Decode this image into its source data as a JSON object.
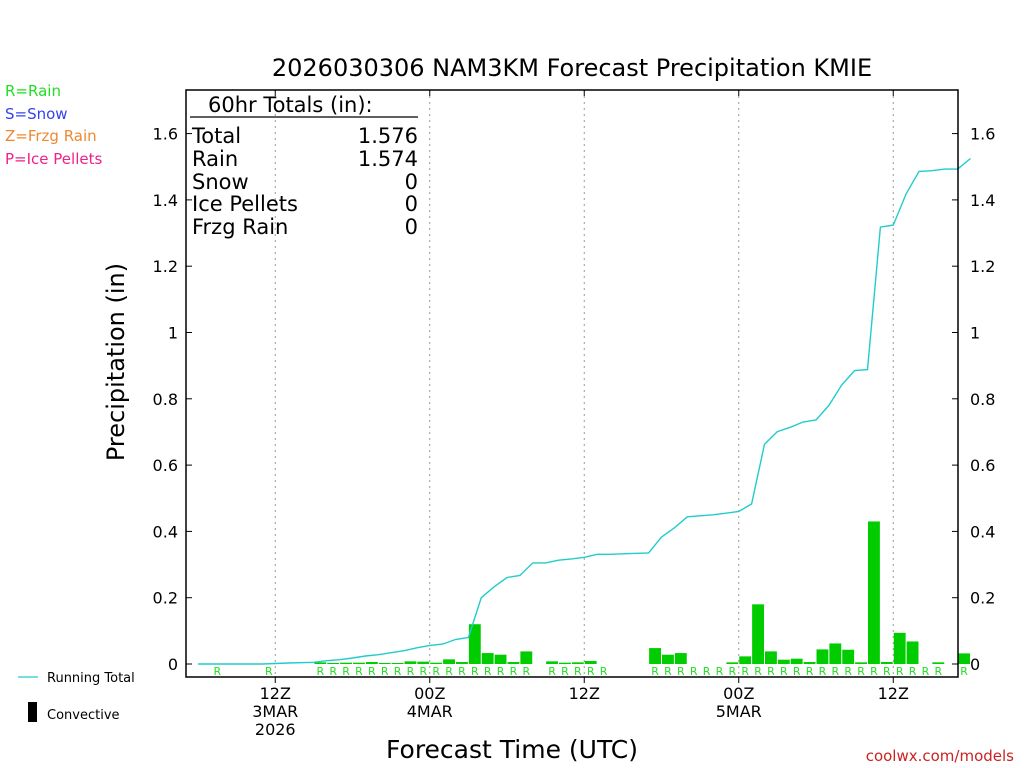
{
  "chart_data": {
    "type": "bar",
    "title": "2026030306 NAM3KM Forecast Precipitation KMIE",
    "xlabel": "Forecast Time (UTC)",
    "ylabel": "Precipitation (in)",
    "ylim": [
      0,
      1.75
    ],
    "x_range_hours": [
      0,
      60
    ],
    "y_ticks": [
      "0",
      "0.2",
      "0.4",
      "0.6",
      "0.8",
      "1",
      "1.2",
      "1.4",
      "1.6"
    ],
    "y_tick_values": [
      0,
      0.2,
      0.4,
      0.6,
      0.8,
      1.0,
      1.2,
      1.4,
      1.6
    ],
    "x_ticks": [
      {
        "hour": 6,
        "lines": [
          "12Z",
          "3MAR",
          "2026"
        ]
      },
      {
        "hour": 18,
        "lines": [
          "00Z",
          "4MAR"
        ]
      },
      {
        "hour": 30,
        "lines": [
          "12Z"
        ]
      },
      {
        "hour": 42,
        "lines": [
          "00Z",
          "5MAR"
        ]
      },
      {
        "hour": 54,
        "lines": [
          "12Z"
        ]
      }
    ],
    "legend_types": [
      {
        "label": "R=Rain",
        "color": "#22dd22"
      },
      {
        "label": "S=Snow",
        "color": "#3344ee"
      },
      {
        "label": "Z=Frzg Rain",
        "color": "#ee8833"
      },
      {
        "label": "P=Ice Pellets",
        "color": "#ee2288"
      }
    ],
    "legend_lines": {
      "running_total": "Running Total",
      "running_total_color": "#22cccc",
      "convective": "Convective",
      "convective_color": "#000000"
    },
    "totals": {
      "header": "60hr Totals (in):",
      "rows": [
        {
          "label": "Total",
          "value": "1.576"
        },
        {
          "label": "Rain",
          "value": "1.574"
        },
        {
          "label": "Snow",
          "value": "0"
        },
        {
          "label": "Ice Pellets",
          "value": "0"
        },
        {
          "label": "Frzg Rain",
          "value": "0"
        }
      ]
    },
    "bar_color": "#00cc00",
    "series": [
      {
        "name": "Hourly Precipitation",
        "hours": [
          1,
          2,
          3,
          4,
          5,
          6,
          7,
          8,
          9,
          10,
          11,
          12,
          13,
          14,
          15,
          16,
          17,
          18,
          19,
          20,
          21,
          22,
          23,
          24,
          25,
          26,
          27,
          28,
          29,
          30,
          31,
          32,
          33,
          34,
          35,
          36,
          37,
          38,
          39,
          40,
          41,
          42,
          43,
          44,
          45,
          46,
          47,
          48,
          49,
          50,
          51,
          52,
          53,
          54,
          55,
          56,
          57,
          58,
          59,
          60
        ],
        "values": [
          0,
          0,
          0,
          0,
          0,
          0,
          0,
          0,
          0,
          0.005,
          0.003,
          0.004,
          0.004,
          0.006,
          0.003,
          0.003,
          0.008,
          0.007,
          0.004,
          0.014,
          0.006,
          0.12,
          0.033,
          0.028,
          0.006,
          0.038,
          0,
          0.008,
          0.004,
          0.005,
          0.009,
          0,
          0,
          0,
          0,
          0.048,
          0.028,
          0.033,
          0,
          0,
          0,
          0.005,
          0.023,
          0.18,
          0.038,
          0.013,
          0.016,
          0.006,
          0.044,
          0.062,
          0.043,
          0.005,
          0.43,
          0.006,
          0.094,
          0.068,
          0,
          0.005,
          0,
          0.032
        ]
      },
      {
        "name": "Running Total",
        "hours": [
          0,
          5,
          7,
          9,
          10,
          11,
          12,
          13,
          14,
          15,
          16,
          17,
          18,
          19,
          20,
          21,
          22,
          23,
          24,
          25,
          26,
          27,
          28,
          29,
          30,
          31,
          32,
          35,
          36,
          37,
          38,
          39,
          40,
          41,
          42,
          43,
          44,
          45,
          46,
          47,
          48,
          49,
          50,
          51,
          52,
          53,
          54,
          55,
          56,
          57,
          58,
          59,
          60
        ],
        "values": [
          0,
          0,
          0.003,
          0.005,
          0.01,
          0.013,
          0.018,
          0.024,
          0.028,
          0.034,
          0.04,
          0.049,
          0.056,
          0.06,
          0.074,
          0.08,
          0.2,
          0.233,
          0.261,
          0.267,
          0.305,
          0.305,
          0.313,
          0.317,
          0.322,
          0.331,
          0.331,
          0.335,
          0.383,
          0.411,
          0.444,
          0.447,
          0.45,
          0.455,
          0.46,
          0.483,
          0.663,
          0.701,
          0.714,
          0.73,
          0.736,
          0.78,
          0.842,
          0.885,
          0.888,
          1.318,
          1.324,
          1.418,
          1.486,
          1.488,
          1.493,
          1.493,
          1.525
        ]
      }
    ],
    "type_codes": [
      {
        "hour": 2,
        "code": "R"
      },
      {
        "hour": 6,
        "code": "R"
      },
      {
        "hour": 10,
        "code": "R"
      },
      {
        "hour": 11,
        "code": "R"
      },
      {
        "hour": 12,
        "code": "R"
      },
      {
        "hour": 13,
        "code": "R"
      },
      {
        "hour": 14,
        "code": "R"
      },
      {
        "hour": 15,
        "code": "R"
      },
      {
        "hour": 16,
        "code": "R"
      },
      {
        "hour": 17,
        "code": "R"
      },
      {
        "hour": 18,
        "code": "R"
      },
      {
        "hour": 19,
        "code": "R"
      },
      {
        "hour": 20,
        "code": "R"
      },
      {
        "hour": 21,
        "code": "R"
      },
      {
        "hour": 22,
        "code": "R"
      },
      {
        "hour": 23,
        "code": "R"
      },
      {
        "hour": 24,
        "code": "R"
      },
      {
        "hour": 25,
        "code": "R"
      },
      {
        "hour": 26,
        "code": "R"
      },
      {
        "hour": 28,
        "code": "R"
      },
      {
        "hour": 29,
        "code": "R"
      },
      {
        "hour": 30,
        "code": "R"
      },
      {
        "hour": 31,
        "code": "R"
      },
      {
        "hour": 32,
        "code": "R"
      },
      {
        "hour": 36,
        "code": "R"
      },
      {
        "hour": 37,
        "code": "R"
      },
      {
        "hour": 38,
        "code": "R"
      },
      {
        "hour": 39,
        "code": "R"
      },
      {
        "hour": 40,
        "code": "R"
      },
      {
        "hour": 41,
        "code": "R"
      },
      {
        "hour": 42,
        "code": "R"
      },
      {
        "hour": 43,
        "code": "R"
      },
      {
        "hour": 44,
        "code": "R"
      },
      {
        "hour": 45,
        "code": "R"
      },
      {
        "hour": 46,
        "code": "R"
      },
      {
        "hour": 47,
        "code": "R"
      },
      {
        "hour": 48,
        "code": "R"
      },
      {
        "hour": 49,
        "code": "R"
      },
      {
        "hour": 50,
        "code": "R"
      },
      {
        "hour": 51,
        "code": "R"
      },
      {
        "hour": 52,
        "code": "R"
      },
      {
        "hour": 53,
        "code": "R"
      },
      {
        "hour": 54,
        "code": "R"
      },
      {
        "hour": 55,
        "code": "R"
      },
      {
        "hour": 56,
        "code": "R"
      },
      {
        "hour": 57,
        "code": "R"
      },
      {
        "hour": 58,
        "code": "R"
      },
      {
        "hour": 60,
        "code": "R"
      }
    ],
    "code_color": "#22dd22",
    "credit": "coolwx.com/models",
    "credit_color": "#cc2222"
  }
}
